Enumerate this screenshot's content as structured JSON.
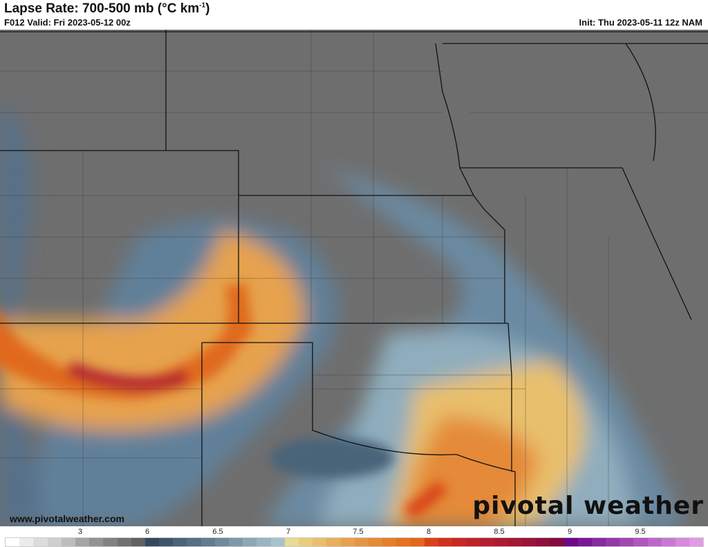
{
  "header": {
    "title": "Lapse Rate: 700-500 mb (°C km",
    "title_sup": "-1",
    "title_end": ")",
    "valid": "F012 Valid: Fri 2023-05-12 00z",
    "init": "Init: Thu 2023-05-11 12z NAM"
  },
  "footer": {
    "url": "www.pivotalweather.com",
    "logo": "pivotal weather"
  },
  "colorbar": {
    "ticks": [
      "3",
      "6",
      "6.5",
      "7",
      "7.5",
      "8",
      "8.5",
      "9",
      "9.5"
    ],
    "colors": [
      "#ffffff",
      "#ececec",
      "#dcdcdc",
      "#cfcfcf",
      "#bdbdbd",
      "#a5a5a5",
      "#939393",
      "#828282",
      "#727272",
      "#616161",
      "#33495e",
      "#3e566c",
      "#4a6479",
      "#566f84",
      "#627d90",
      "#6f8a9c",
      "#7d98a8",
      "#8ca7b5",
      "#9ab5c1",
      "#a8c3cc",
      "#e8dc94",
      "#e9cd7f",
      "#e8bf6c",
      "#e7b05c",
      "#e6a24e",
      "#e59543",
      "#e48a38",
      "#e37f2d",
      "#e27424",
      "#e0691b",
      "#d94219",
      "#cf321f",
      "#c62a24",
      "#bd2429",
      "#b4202d",
      "#ab1c31",
      "#a21835",
      "#981438",
      "#8e103c",
      "#840c40",
      "#6c0a8a",
      "#7a1996",
      "#882aa0",
      "#9538aa",
      "#a347b4",
      "#b057be",
      "#bd68c8",
      "#c979d1",
      "#d58adb",
      "#e09be4"
    ],
    "background_color": "#6e6e6e"
  }
}
